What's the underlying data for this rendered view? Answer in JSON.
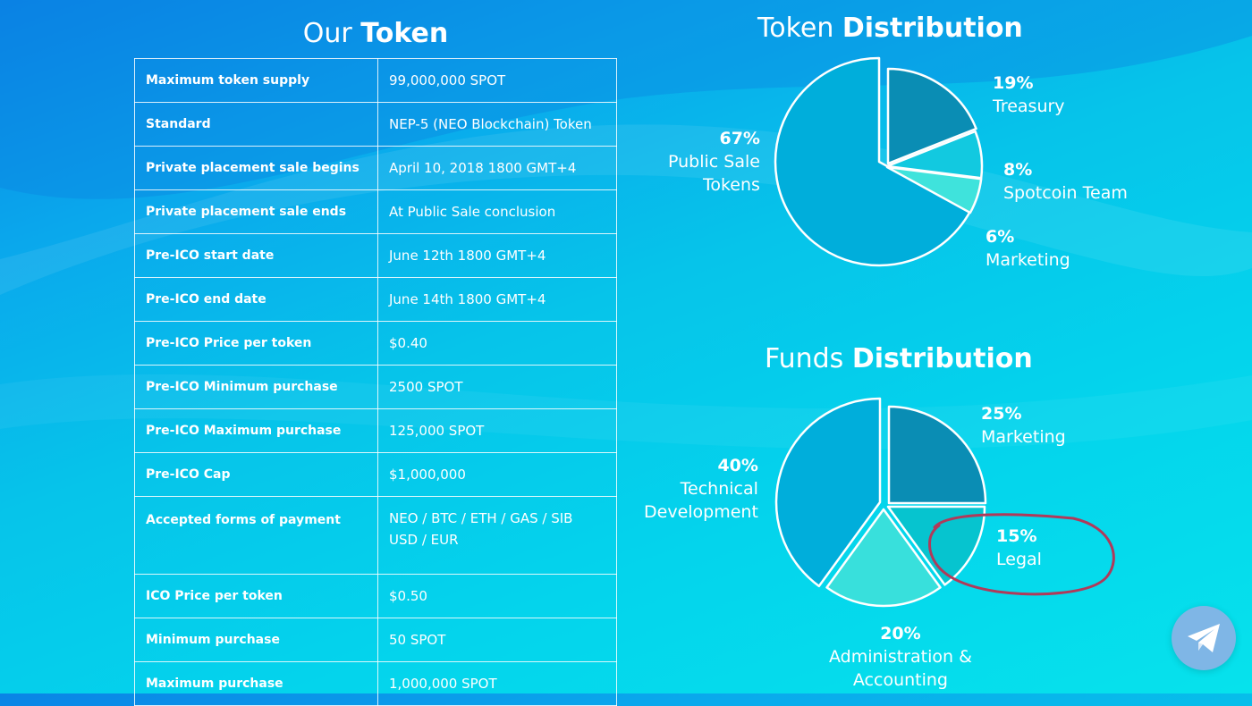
{
  "our_token": {
    "title_light": "Our",
    "title_bold": "Token",
    "rows": [
      {
        "label": "Maximum token supply",
        "value": "99,000,000 SPOT"
      },
      {
        "label": "Standard",
        "value": "NEP-5 (NEO Blockchain) Token"
      },
      {
        "label": "Private placement sale begins",
        "value": "April 10, 2018 1800 GMT+4"
      },
      {
        "label": "Private placement sale ends",
        "value": "At Public Sale conclusion"
      },
      {
        "label": "Pre-ICO start date",
        "value": "June 12th 1800 GMT+4"
      },
      {
        "label": "Pre-ICO end date",
        "value": "June 14th 1800 GMT+4"
      },
      {
        "label": "Pre-ICO Price per token",
        "value": "$0.40"
      },
      {
        "label": "Pre-ICO Minimum purchase",
        "value": "2500 SPOT"
      },
      {
        "label": "Pre-ICO Maximum purchase",
        "value": "125,000 SPOT"
      },
      {
        "label": "Pre-ICO Cap",
        "value": "$1,000,000"
      },
      {
        "label": "Accepted forms of payment",
        "value": "NEO / BTC / ETH / GAS / SIB",
        "value2": "USD / EUR"
      },
      {
        "label": "ICO Price per token",
        "value": "$0.50"
      },
      {
        "label": "Minimum purchase",
        "value": "50 SPOT"
      },
      {
        "label": "Maximum purchase",
        "value": "1,000,000 SPOT"
      }
    ]
  },
  "chart_data": [
    {
      "type": "pie",
      "title": "Token Distribution",
      "title_light": "Token",
      "title_bold": "Distribution",
      "slices": [
        {
          "name": "Public Sale Tokens",
          "name_lines": [
            "Public Sale",
            "Tokens"
          ],
          "pct_label": "67%",
          "value": 67,
          "color": "#00aedb"
        },
        {
          "name": "Treasury",
          "name_lines": [
            "Treasury"
          ],
          "pct_label": "19%",
          "value": 19,
          "color": "#0a8db4"
        },
        {
          "name": "Spotcoin Team",
          "name_lines": [
            "Spotcoin Team"
          ],
          "pct_label": "8%",
          "value": 8,
          "color": "#12c9e0"
        },
        {
          "name": "Marketing",
          "name_lines": [
            "Marketing"
          ],
          "pct_label": "6%",
          "value": 6,
          "color": "#3fe3dc"
        }
      ]
    },
    {
      "type": "pie",
      "title": "Funds Distribution",
      "title_light": "Funds",
      "title_bold": "Distribution",
      "slices": [
        {
          "name": "Marketing",
          "name_lines": [
            "Marketing"
          ],
          "pct_label": "25%",
          "value": 25,
          "color": "#0a8db4"
        },
        {
          "name": "Legal",
          "name_lines": [
            "Legal"
          ],
          "pct_label": "15%",
          "value": 15,
          "color": "#06c4cf"
        },
        {
          "name": "Administration & Accounting",
          "name_lines": [
            "Administration &",
            "Accounting"
          ],
          "pct_label": "20%",
          "value": 20,
          "color": "#38e0dc"
        },
        {
          "name": "Technical Development",
          "name_lines": [
            "Technical",
            "Development"
          ],
          "pct_label": "40%",
          "value": 40,
          "color": "#00aedb"
        }
      ]
    }
  ],
  "annotation": {
    "color": "#b03a5a",
    "highlighted": "Legal"
  },
  "telegram": {
    "icon": "telegram-paper-plane-icon",
    "color": "#7fb6e6"
  }
}
